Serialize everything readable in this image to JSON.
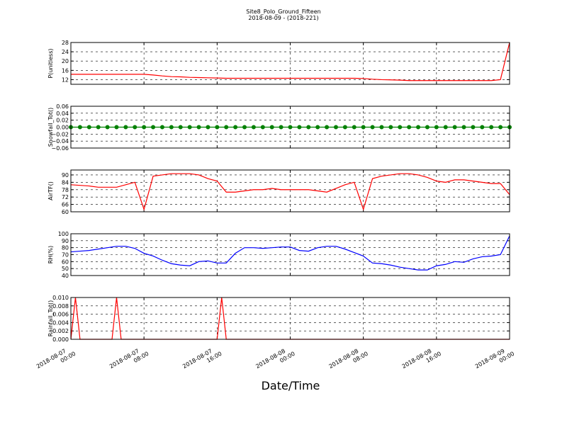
{
  "title": "Site8_Polo_Ground_Fifteen",
  "subtitle": "2018-08-09 - (2018-221)",
  "x_label": "Date/Time",
  "x": [
    "2018-08-07 00:00",
    "2018-08-07 01:00",
    "2018-08-07 02:00",
    "2018-08-07 03:00",
    "2018-08-07 04:00",
    "2018-08-07 05:00",
    "2018-08-07 06:00",
    "2018-08-07 07:00",
    "2018-08-07 08:00",
    "2018-08-07 09:00",
    "2018-08-07 10:00",
    "2018-08-07 11:00",
    "2018-08-07 12:00",
    "2018-08-07 13:00",
    "2018-08-07 14:00",
    "2018-08-07 15:00",
    "2018-08-07 16:00",
    "2018-08-07 17:00",
    "2018-08-07 18:00",
    "2018-08-07 19:00",
    "2018-08-07 20:00",
    "2018-08-07 21:00",
    "2018-08-07 22:00",
    "2018-08-07 23:00",
    "2018-08-08 00:00",
    "2018-08-08 01:00",
    "2018-08-08 02:00",
    "2018-08-08 03:00",
    "2018-08-08 04:00",
    "2018-08-08 05:00",
    "2018-08-08 06:00",
    "2018-08-08 07:00",
    "2018-08-08 08:00",
    "2018-08-08 09:00",
    "2018-08-08 10:00",
    "2018-08-08 11:00",
    "2018-08-08 12:00",
    "2018-08-08 13:00",
    "2018-08-08 14:00",
    "2018-08-08 15:00",
    "2018-08-08 16:00",
    "2018-08-08 17:00",
    "2018-08-08 18:00",
    "2018-08-08 19:00",
    "2018-08-08 20:00",
    "2018-08-08 21:00",
    "2018-08-08 22:00",
    "2018-08-08 23:00",
    "2018-08-09 00:00"
  ],
  "xlim": [
    "2018-08-07 00:00",
    "2018-08-09 00:00"
  ],
  "xticks": [
    "2018-08-07 00:00",
    "2018-08-07 08:00",
    "2018-08-07 16:00",
    "2018-08-08 00:00",
    "2018-08-08 08:00",
    "2018-08-08 16:00",
    "2018-08-09 00:00"
  ],
  "grid": true,
  "chart_data": [
    {
      "type": "line",
      "y_label": "P(unitless)",
      "color": "#ff0000",
      "ylim": [
        10,
        28
      ],
      "yticks": [
        12,
        16,
        20,
        24,
        28
      ],
      "values": [
        14.3,
        14.3,
        14.3,
        14.3,
        14.3,
        14.3,
        14.3,
        14.3,
        14.3,
        14.0,
        13.6,
        13.3,
        13.2,
        13.0,
        12.9,
        12.8,
        12.7,
        12.6,
        12.6,
        12.6,
        12.6,
        12.6,
        12.6,
        12.6,
        12.6,
        12.6,
        12.6,
        12.6,
        12.6,
        12.6,
        12.6,
        12.6,
        12.5,
        12.2,
        12.0,
        11.9,
        11.8,
        11.6,
        11.6,
        11.6,
        11.6,
        11.6,
        11.6,
        11.6,
        11.6,
        11.6,
        11.6,
        12.0,
        28
      ]
    },
    {
      "type": "line",
      "y_label": "Snowfall_Tot()",
      "color": "#008000",
      "marker": "o",
      "ylim": [
        -0.06,
        0.06
      ],
      "yticks": [
        {
          "value": -0.06,
          "label": "−0.06"
        },
        {
          "value": -0.04,
          "label": "−0.04"
        },
        {
          "value": -0.02,
          "label": "−0.02"
        },
        {
          "value": 0,
          "label": "0.00"
        },
        0.02,
        0.04,
        0.06
      ],
      "values": [
        0,
        0,
        0,
        0,
        0,
        0,
        0,
        0,
        0,
        0,
        0,
        0,
        0,
        0,
        0,
        0,
        0,
        0,
        0,
        0,
        0,
        0,
        0,
        0,
        0,
        0,
        0,
        0,
        0,
        0,
        0,
        0,
        0,
        0,
        0,
        0,
        0,
        0,
        0,
        0,
        0,
        0,
        0,
        0,
        0,
        0,
        0,
        0,
        0
      ]
    },
    {
      "type": "line",
      "y_label": "AirTF()",
      "color": "#ff0000",
      "ylim": [
        60,
        94
      ],
      "yticks": [
        60,
        66,
        72,
        78,
        84,
        90
      ],
      "values": [
        82,
        81.5,
        81,
        80,
        80,
        80,
        82,
        84,
        62,
        89,
        90,
        91,
        91,
        91,
        90,
        87,
        85,
        76,
        76,
        77,
        78,
        78,
        79,
        78,
        78,
        78,
        78,
        77,
        76,
        79,
        82,
        84,
        62,
        87,
        89,
        90,
        91,
        91,
        90,
        88,
        85,
        84,
        86,
        86,
        85,
        84,
        83,
        83,
        74
      ]
    },
    {
      "type": "line",
      "y_label": "RH(%)",
      "color": "#0000ff",
      "ylim": [
        40,
        100
      ],
      "yticks": [
        40,
        50,
        60,
        70,
        80,
        90,
        100
      ],
      "values": [
        74,
        75,
        76,
        78,
        80,
        82,
        82,
        79,
        72,
        68,
        62,
        57,
        55,
        54,
        60,
        61,
        58,
        58,
        72,
        80,
        80,
        79,
        80,
        81,
        81,
        76,
        75,
        80,
        82,
        82,
        78,
        73,
        68,
        58,
        57,
        55,
        52,
        50,
        48,
        48,
        54,
        56,
        60,
        59,
        64,
        67,
        68,
        70,
        97
      ]
    },
    {
      "type": "line",
      "y_label": "Rainfall_Tot()",
      "color": "#ff0000",
      "ylim": [
        0,
        0.01
      ],
      "yticks": [
        {
          "value": 0,
          "label": "0.000"
        },
        0.002,
        0.004,
        0.006,
        0.008,
        {
          "value": 0.01,
          "label": "0.010"
        }
      ],
      "x": [
        "2018-08-07 00:00",
        "2018-08-07 00:30",
        "2018-08-07 01:00",
        "2018-08-07 04:30",
        "2018-08-07 05:00",
        "2018-08-07 05:30",
        "2018-08-07 16:00",
        "2018-08-07 16:30",
        "2018-08-07 17:00",
        "2018-08-09 00:00"
      ],
      "values": [
        0,
        0.01,
        0,
        0,
        0.01,
        0,
        0,
        0.01,
        0,
        0
      ]
    }
  ]
}
